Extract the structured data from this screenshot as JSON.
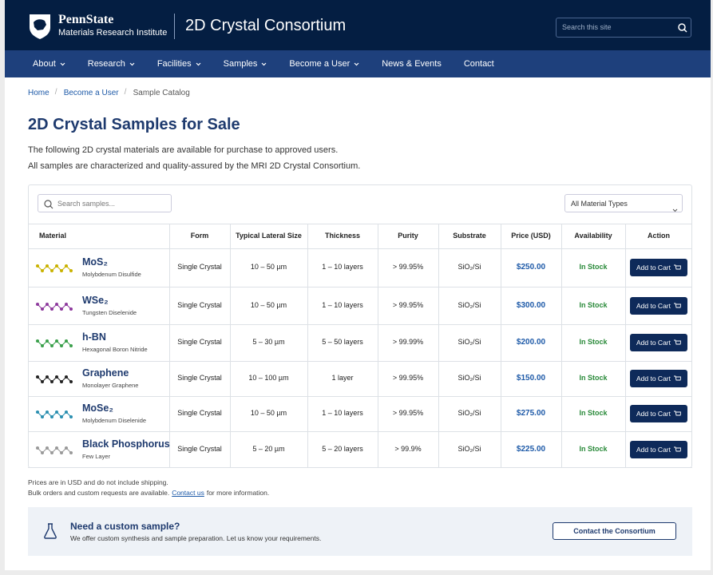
{
  "header": {
    "brand": "PennState",
    "institute": "Materials Research Institute",
    "site_title": "2D Crystal Consortium",
    "search_placeholder": "Search this site"
  },
  "nav": [
    {
      "label": "About",
      "dropdown": true
    },
    {
      "label": "Research",
      "dropdown": true
    },
    {
      "label": "Facilities",
      "dropdown": true
    },
    {
      "label": "Samples",
      "dropdown": true
    },
    {
      "label": "Become a User",
      "dropdown": true
    },
    {
      "label": "News & Events",
      "dropdown": false
    },
    {
      "label": "Contact",
      "dropdown": false
    }
  ],
  "breadcrumb": [
    "Home",
    "Become a User",
    "Sample Catalog"
  ],
  "page": {
    "title": "2D Crystal Samples for Sale",
    "intro": [
      "The following 2D crystal materials are available for purchase to approved users.",
      "All samples are characterized and quality-assured by the MRI 2D Crystal Consortium."
    ]
  },
  "catalog": {
    "search_placeholder": "Search samples...",
    "filter": "All Material Types",
    "columns": [
      "Material",
      "Form",
      "Typical Lateral Size",
      "Thickness",
      "Purity",
      "Substrate",
      "Price (USD)",
      "Availability",
      "Action"
    ],
    "rows": [
      {
        "name": "MoS₂",
        "subtitle": "Molybdenum Disulfide",
        "form": "Single Crystal",
        "size": "10 – 50 µm",
        "thickness": "1 – 10 layers",
        "purity": "> 99.95%",
        "substrate": "SiO₂/Si",
        "price": "$250.00",
        "availability": "In Stock",
        "action": "Add to Cart"
      },
      {
        "name": "WSe₂",
        "subtitle": "Tungsten Diselenide",
        "form": "Single Crystal",
        "size": "10 – 50 µm",
        "thickness": "1 – 10 layers",
        "purity": "> 99.95%",
        "substrate": "SiO₂/Si",
        "price": "$300.00",
        "availability": "In Stock",
        "action": "Add to Cart"
      },
      {
        "name": "h-BN",
        "subtitle": "Hexagonal Boron Nitride",
        "form": "Single Crystal",
        "size": "5 – 30 µm",
        "thickness": "5 – 50 layers",
        "purity": "> 99.99%",
        "substrate": "SiO₂/Si",
        "price": "$200.00",
        "availability": "In Stock",
        "action": "Add to Cart"
      },
      {
        "name": "Graphene",
        "subtitle": "Monolayer Graphene",
        "form": "Single Crystal",
        "size": "10 – 100 µm",
        "thickness": "1 layer",
        "purity": "> 99.95%",
        "substrate": "SiO₂/Si",
        "price": "$150.00",
        "availability": "In Stock",
        "action": "Add to Cart"
      },
      {
        "name": "MoSe₂",
        "subtitle": "Molybdenum Diselenide",
        "form": "Single Crystal",
        "size": "10 – 50 µm",
        "thickness": "1 – 10 layers",
        "purity": "> 99.95%",
        "substrate": "SiO₂/Si",
        "price": "$275.00",
        "availability": "In Stock",
        "action": "Add to Cart"
      },
      {
        "name": "Black Phosphorus",
        "subtitle": "Few Layer",
        "form": "Single Crystal",
        "size": "5 – 20 µm",
        "thickness": "5 – 20 layers",
        "purity": "> 99.9%",
        "substrate": "SiO₂/Si",
        "price": "$225.00",
        "availability": "In Stock",
        "action": "Add to Cart"
      }
    ]
  },
  "notes": {
    "shipping": "Prices are in USD and do not include shipping.",
    "bulk": "Bulk orders and custom requests are available.",
    "link": "Contact us",
    "after": "for more information."
  },
  "custom": {
    "title": "Need a custom sample?",
    "text": "We offer custom synthesis and sample preparation. Let us know your requirements.",
    "button": "Contact the Consortium"
  }
}
